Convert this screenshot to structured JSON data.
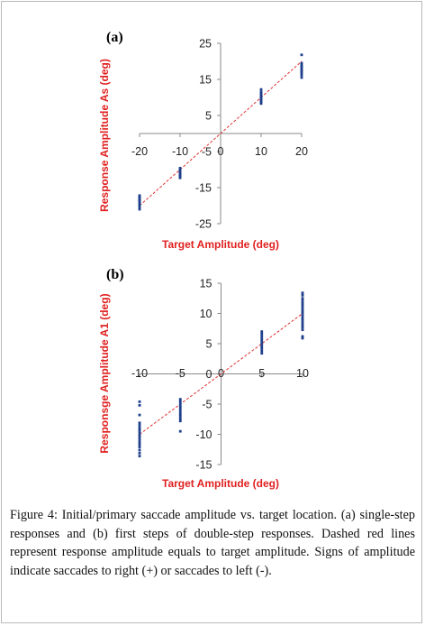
{
  "chart_data": [
    {
      "type": "scatter",
      "panel_label": "(a)",
      "xlabel": "Target Amplitude (deg)",
      "ylabel": "Response Amplitude As (deg)",
      "xlim": [
        -20,
        20
      ],
      "ylim": [
        -25,
        25
      ],
      "x_ticks": [
        -20,
        -10,
        0,
        10,
        20
      ],
      "y_ticks": [
        25,
        15,
        5,
        -5,
        -15,
        -25
      ],
      "reference_line": {
        "style": "dashed",
        "color": "#e03030",
        "from": [
          -20,
          -20
        ],
        "to": [
          20,
          20
        ]
      },
      "marker_color": "#1f3f8c",
      "series": [
        {
          "x": -20,
          "y": [
            -21,
            -20.5,
            -20,
            -19.5,
            -19,
            -18.7,
            -18.4,
            -18.1,
            -17.8,
            -17.5,
            -17.2
          ]
        },
        {
          "x": -10,
          "y": [
            -12.3,
            -12,
            -11.7,
            -11.4,
            -11.1,
            -10.8,
            -10.5,
            -10.2,
            -9.9,
            -9.6
          ]
        },
        {
          "x": 10,
          "y": [
            8.3,
            8.7,
            9.1,
            9.5,
            9.9,
            10.3,
            10.7,
            11.1,
            11.5,
            12.2
          ]
        },
        {
          "x": 20,
          "y": [
            15.5,
            16.2,
            16.7,
            17.1,
            17.5,
            17.9,
            18.3,
            18.7,
            19.1,
            19.5,
            21.8
          ]
        }
      ]
    },
    {
      "type": "scatter",
      "panel_label": "(b)",
      "xlabel": "Target Amplitude (deg)",
      "ylabel": "Responsge Amplitude A1 (deg)",
      "xlim": [
        -10,
        10
      ],
      "ylim": [
        -15,
        15
      ],
      "x_ticks": [
        -10,
        -5,
        0,
        5,
        10
      ],
      "y_ticks": [
        15,
        10,
        5,
        0,
        -5,
        -10,
        -15
      ],
      "reference_line": {
        "style": "dashed",
        "color": "#e03030",
        "from": [
          -10,
          -10
        ],
        "to": [
          10,
          10
        ]
      },
      "marker_color": "#1f3f8c",
      "series": [
        {
          "x": -10,
          "y": [
            -13.6,
            -13.1,
            -12.6,
            -12.1,
            -11.7,
            -11.3,
            -10.9,
            -10.5,
            -10.1,
            -9.7,
            -9.3,
            -8.9,
            -8.5,
            -8.1,
            -6.8,
            -5.2,
            -4.6
          ]
        },
        {
          "x": -5,
          "y": [
            -9.5,
            -7.8,
            -7.4,
            -7.0,
            -6.6,
            -6.2,
            -5.8,
            -5.4,
            -5.0,
            -4.6,
            -4.2
          ]
        },
        {
          "x": 5,
          "y": [
            3.4,
            3.8,
            4.2,
            4.6,
            5.0,
            5.4,
            5.8,
            6.2,
            6.6,
            7.0
          ]
        },
        {
          "x": 10,
          "y": [
            5.9,
            6.2,
            7.3,
            7.7,
            8.1,
            8.5,
            8.9,
            9.3,
            9.7,
            10.1,
            10.5,
            10.9,
            11.3,
            11.7,
            12.1,
            12.5,
            13.0,
            13.4
          ]
        }
      ]
    }
  ],
  "caption": {
    "figure_label": "Figure 4:",
    "text": " Initial/primary saccade amplitude vs. target location. (a) single-step responses and (b) first steps of double-step responses. Dashed red lines represent response amplitude equals to target amplitude. Signs of amplitude indicate saccades to right (+) or saccades to left (-)."
  }
}
